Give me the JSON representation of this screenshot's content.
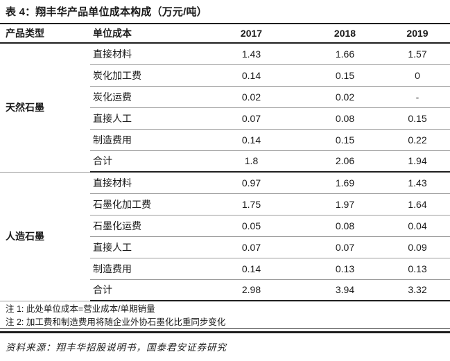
{
  "table": {
    "title": "表 4：翔丰华产品单位成本构成（万元/吨）",
    "columns": [
      "产品类型",
      "单位成本",
      "2017",
      "2018",
      "2019"
    ],
    "groups": [
      {
        "name": "天然石墨",
        "rows": [
          {
            "label": "直接材料",
            "values": [
              "1.43",
              "1.66",
              "1.57"
            ]
          },
          {
            "label": "炭化加工费",
            "values": [
              "0.14",
              "0.15",
              "0"
            ]
          },
          {
            "label": "炭化运费",
            "values": [
              "0.02",
              "0.02",
              "-"
            ]
          },
          {
            "label": "直接人工",
            "values": [
              "0.07",
              "0.08",
              "0.15"
            ]
          },
          {
            "label": "制造费用",
            "values": [
              "0.14",
              "0.15",
              "0.22"
            ]
          },
          {
            "label": "合计",
            "values": [
              "1.8",
              "2.06",
              "1.94"
            ]
          }
        ]
      },
      {
        "name": "人造石墨",
        "rows": [
          {
            "label": "直接材料",
            "values": [
              "0.97",
              "1.69",
              "1.43"
            ]
          },
          {
            "label": "石墨化加工费",
            "values": [
              "1.75",
              "1.97",
              "1.64"
            ]
          },
          {
            "label": "石墨化运费",
            "values": [
              "0.05",
              "0.08",
              "0.04"
            ]
          },
          {
            "label": "直接人工",
            "values": [
              "0.07",
              "0.07",
              "0.09"
            ]
          },
          {
            "label": "制造费用",
            "values": [
              "0.14",
              "0.13",
              "0.13"
            ]
          },
          {
            "label": "合计",
            "values": [
              "2.98",
              "3.94",
              "3.32"
            ]
          }
        ]
      }
    ],
    "notes": [
      "注 1: 此处单位成本=营业成本/单期销量",
      "注 2: 加工费和制造费用将随企业外协石墨化比重同步变化"
    ],
    "source": "资料来源：翔丰华招股说明书，国泰君安证券研究"
  },
  "colors": {
    "text": "#1a1a1a",
    "rule_dark": "#1e1e1e",
    "rule_light": "#9a9a9a",
    "background": "#ffffff"
  }
}
